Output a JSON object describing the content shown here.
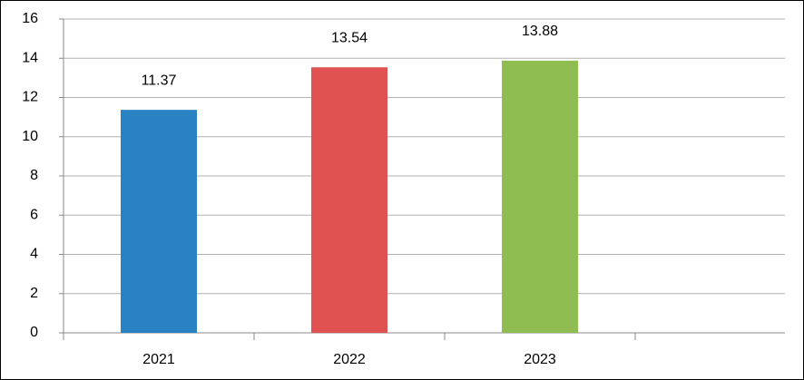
{
  "chart_data": {
    "type": "bar",
    "categories": [
      "2021",
      "2022",
      "2023",
      null
    ],
    "values": [
      11.37,
      13.54,
      13.88,
      null
    ],
    "colors": [
      "#2a82c2",
      "#e05252",
      "#90bd52"
    ],
    "ylim": [
      0,
      16
    ],
    "yticks": [
      0,
      2,
      4,
      6,
      8,
      10,
      12,
      14,
      16
    ],
    "grid": true
  }
}
